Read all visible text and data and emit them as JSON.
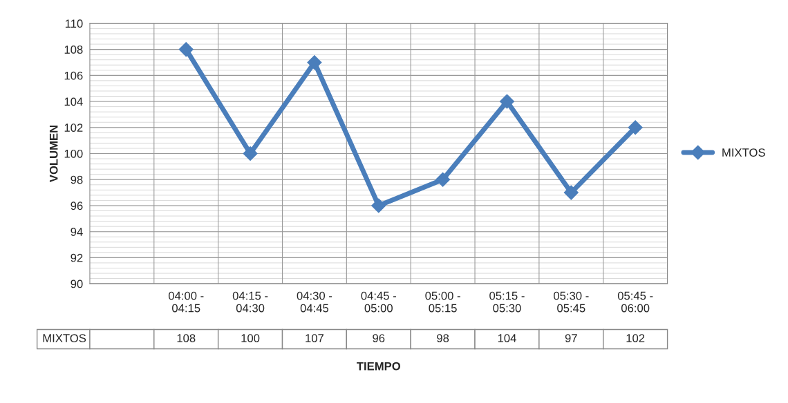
{
  "chart_data": {
    "type": "line",
    "xlabel": "TIEMPO",
    "ylabel": "VOLUMEN",
    "categories": [
      null,
      "04:00 - 04:15",
      "04:15 - 04:30",
      "04:30 - 04:45",
      "04:45 - 05:00",
      "05:00 - 05:15",
      "05:15 - 05:30",
      "05:30 - 05:45",
      "05:45 - 06:00"
    ],
    "series": [
      {
        "name": "MIXTOS",
        "color": "#4a7ebb",
        "values": [
          null,
          108,
          100,
          107,
          96,
          98,
          104,
          97,
          102
        ]
      }
    ],
    "ylim": [
      90,
      110
    ],
    "yticks": [
      90,
      92,
      94,
      96,
      98,
      100,
      102,
      104,
      106,
      108,
      110
    ],
    "grid": true,
    "legend": "right",
    "marker": "diamond",
    "line_style": "solid",
    "data_labels": true
  }
}
